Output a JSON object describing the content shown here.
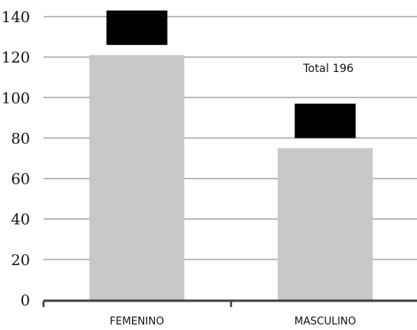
{
  "chart_data": {
    "type": "bar",
    "categories": [
      "FEMENINO",
      "MASCULINO"
    ],
    "values": [
      121,
      75
    ],
    "ylim": [
      0,
      140
    ],
    "yticks": [
      0,
      20,
      40,
      60,
      80,
      100,
      120,
      140
    ],
    "grid": true,
    "annotation": "Total 196",
    "black_boxes": [
      {
        "category": "FEMENINO",
        "from": 126,
        "to": 143
      },
      {
        "category": "MASCULINO",
        "from": 80,
        "to": 97
      }
    ],
    "colors": {
      "bar": "#c8c8c8",
      "box": "#000000",
      "grid": "#a6a6a6",
      "axis": "#404040"
    }
  }
}
